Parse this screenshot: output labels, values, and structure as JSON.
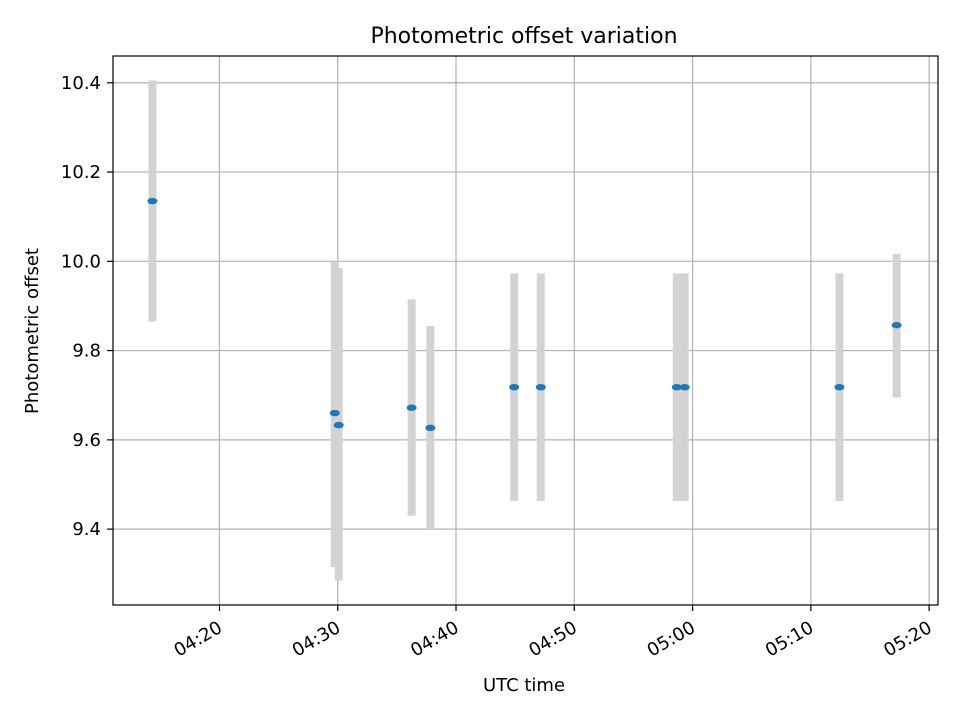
{
  "chart_data": {
    "type": "scatter",
    "title": "Photometric offset variation",
    "xlabel": "UTC time",
    "ylabel": "Photometric offset",
    "x_ticks": [
      "04:20",
      "04:30",
      "04:40",
      "04:50",
      "05:00",
      "05:10",
      "05:20"
    ],
    "y_ticks": [
      "9.4",
      "9.6",
      "9.8",
      "10.0",
      "10.2",
      "10.4"
    ],
    "xlim": [
      "04:11:00",
      "05:20:45"
    ],
    "ylim": [
      9.23,
      10.46
    ],
    "grid": true,
    "point_color": "#1f77b4",
    "errorbar_color": "#d3d3d3",
    "points": [
      {
        "x": "04:14:20",
        "y": 10.135,
        "yerr_low": 9.865,
        "yerr_high": 10.405
      },
      {
        "x": "04:29:45",
        "y": 9.66,
        "yerr_low": 9.315,
        "yerr_high": 10.0
      },
      {
        "x": "04:30:05",
        "y": 9.633,
        "yerr_low": 9.285,
        "yerr_high": 9.985
      },
      {
        "x": "04:36:15",
        "y": 9.672,
        "yerr_low": 9.43,
        "yerr_high": 9.915
      },
      {
        "x": "04:37:50",
        "y": 9.627,
        "yerr_low": 9.4,
        "yerr_high": 9.855
      },
      {
        "x": "04:44:55",
        "y": 9.718,
        "yerr_low": 9.463,
        "yerr_high": 9.973
      },
      {
        "x": "04:47:10",
        "y": 9.718,
        "yerr_low": 9.463,
        "yerr_high": 9.973
      },
      {
        "x": "04:58:40",
        "y": 9.718,
        "yerr_low": 9.463,
        "yerr_high": 9.973
      },
      {
        "x": "04:59:20",
        "y": 9.718,
        "yerr_low": 9.463,
        "yerr_high": 9.973
      },
      {
        "x": "05:12:25",
        "y": 9.718,
        "yerr_low": 9.463,
        "yerr_high": 9.973
      },
      {
        "x": "05:17:15",
        "y": 9.857,
        "yerr_low": 9.695,
        "yerr_high": 10.017
      }
    ]
  }
}
